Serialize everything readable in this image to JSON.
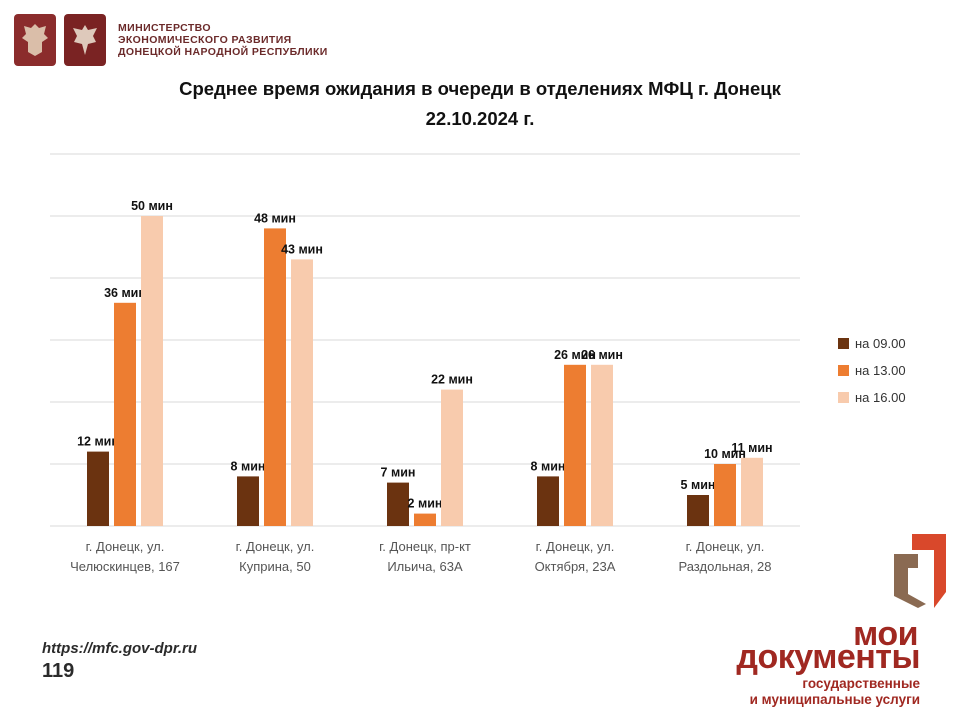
{
  "header": {
    "ministry_lines": [
      "МИНИСТЕРСТВО",
      "ЭКОНОМИЧЕСКОГО РАЗВИТИЯ",
      "ДОНЕЦКОЙ НАРОДНОЙ РЕСПУБЛИКИ"
    ]
  },
  "title_line1": "Среднее время ожидания в очереди в отделениях МФЦ г. Донецк",
  "title_line2": "22.10.2024 г.",
  "footer": {
    "url": "https://mfc.gov-dpr.ru",
    "page": "119"
  },
  "brand": {
    "line1": "мои",
    "line2": "документы",
    "sub1": "государственные",
    "sub2": "и муниципальные услуги"
  },
  "colors": {
    "s1": "#6b3310",
    "s2": "#ed7d31",
    "s3": "#f8cbad",
    "grid": "#d9d9d9",
    "brand": "#a02821"
  },
  "chart_data": {
    "type": "bar",
    "categories": [
      [
        "г. Донецк, ул.",
        "Челюскинцев, 167"
      ],
      [
        "г. Донецк, ул.",
        "Куприна, 50"
      ],
      [
        "г. Донецк, пр-кт",
        "Ильича, 63А"
      ],
      [
        "г. Донецк, ул.",
        "Октября, 23А"
      ],
      [
        "г. Донецк, ул.",
        "Раздольная, 28"
      ]
    ],
    "series": [
      {
        "name": "на 09.00",
        "values": [
          12,
          8,
          7,
          8,
          5
        ],
        "labels": [
          "12 мин",
          "8 мин",
          "7 мин",
          "8 мин",
          "5 мин"
        ]
      },
      {
        "name": "на 13.00",
        "values": [
          36,
          48,
          2,
          26,
          10
        ],
        "labels": [
          "36 мин",
          "48 мин",
          "2 мин",
          "26 мин",
          "10 мин"
        ]
      },
      {
        "name": "на 16.00",
        "values": [
          50,
          43,
          22,
          26,
          11
        ],
        "labels": [
          "50 мин",
          "43 мин",
          "22 мин",
          "26 мин",
          "11 мин"
        ]
      }
    ],
    "ylim": [
      0,
      60
    ],
    "grid": true,
    "legend": "right"
  }
}
